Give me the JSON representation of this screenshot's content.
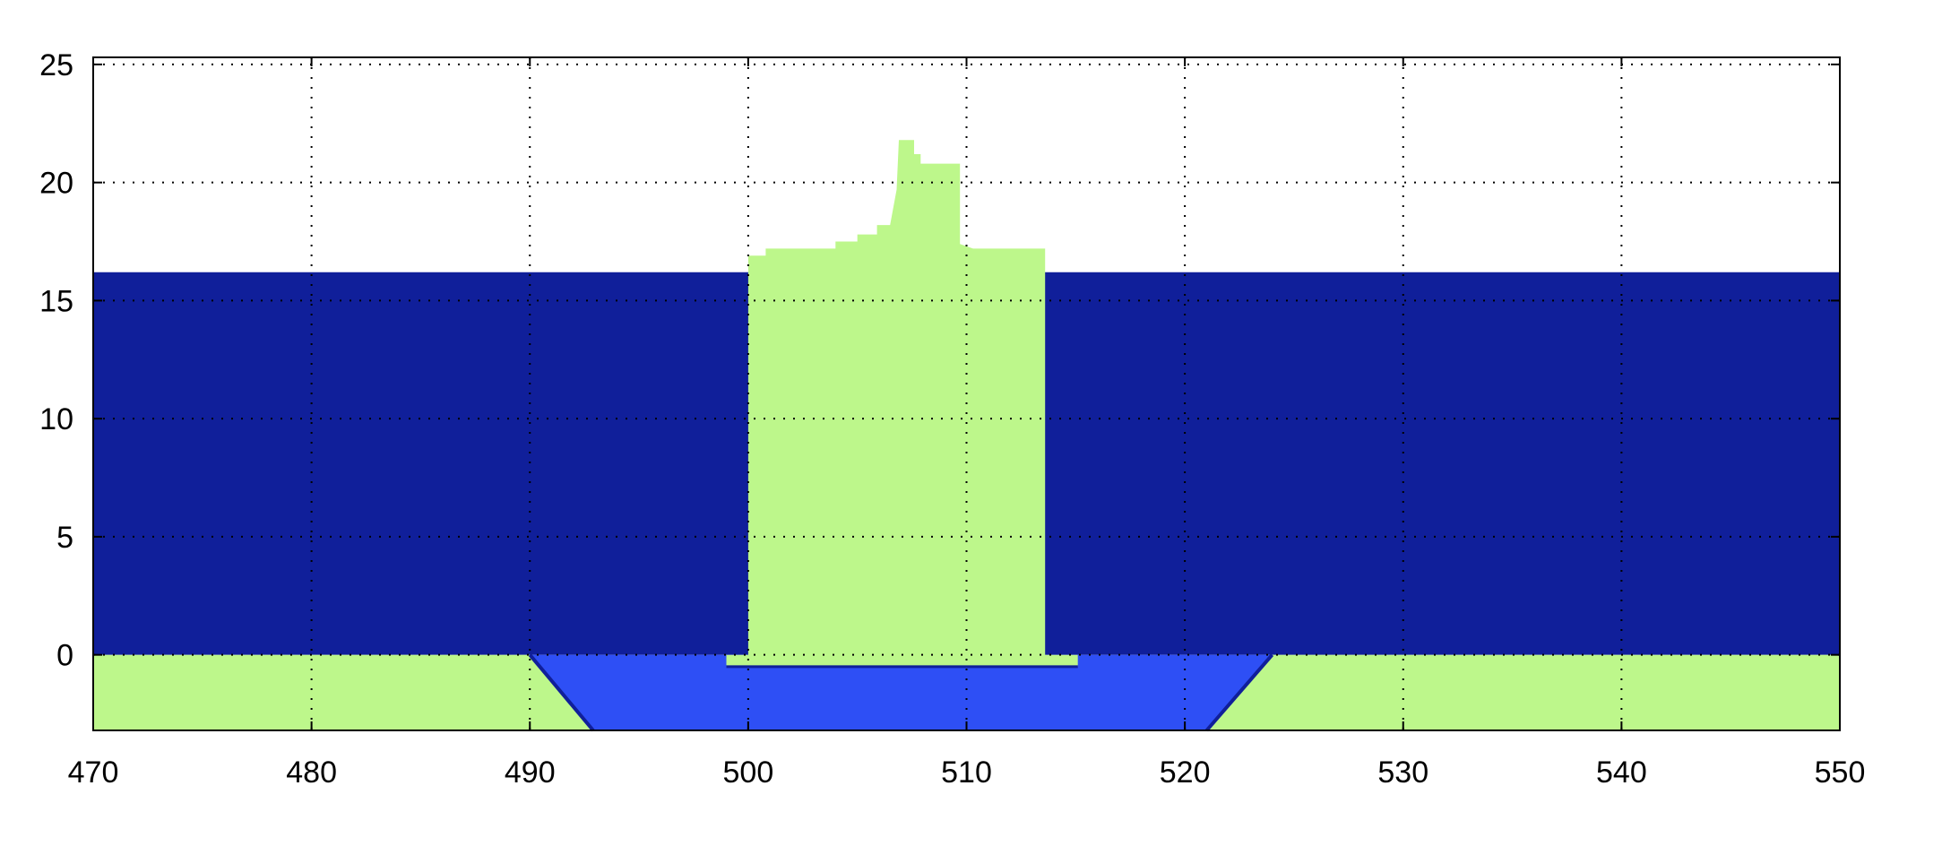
{
  "chart_data": {
    "type": "area",
    "title": "",
    "xlabel": "",
    "ylabel": "",
    "xlim": [
      470,
      550
    ],
    "ylim": [
      -3.2,
      25.3
    ],
    "grid": true,
    "x_ticks": [
      470,
      480,
      490,
      500,
      510,
      520,
      530,
      540,
      550
    ],
    "y_ticks": [
      0,
      5,
      10,
      15,
      20,
      25
    ],
    "x_tick_labels": [
      "470",
      "480",
      "490",
      "500",
      "510",
      "520",
      "530",
      "540",
      "550"
    ],
    "y_tick_labels": [
      "0",
      "5",
      "10",
      "15",
      "20",
      "25"
    ],
    "colors": {
      "water": "#101f9a",
      "trench_fill": "#2e4ff5",
      "soil": "#bdf78b",
      "background": "#ffffff",
      "grid": "#000000"
    },
    "regions": [
      {
        "kind": "water",
        "color": "#101f9a",
        "points": [
          [
            470,
            0
          ],
          [
            470,
            16.2
          ],
          [
            550,
            16.2
          ],
          [
            550,
            0
          ]
        ]
      },
      {
        "kind": "trench_fill",
        "color": "#2e4ff5",
        "points": [
          [
            490,
            0
          ],
          [
            492.9,
            -3.2
          ],
          [
            521,
            -3.2
          ],
          [
            524,
            0
          ]
        ]
      },
      {
        "kind": "seabed_left",
        "color": "#bdf78b",
        "points": [
          [
            470,
            -3.2
          ],
          [
            470,
            0
          ],
          [
            490,
            0
          ],
          [
            492.9,
            -3.2
          ]
        ]
      },
      {
        "kind": "seabed_right",
        "color": "#bdf78b",
        "points": [
          [
            521,
            -3.2
          ],
          [
            524,
            0
          ],
          [
            550,
            0
          ],
          [
            550,
            -3.2
          ]
        ]
      },
      {
        "kind": "structure",
        "color": "#bdf78b",
        "points": [
          [
            499,
            -0.5
          ],
          [
            499,
            0
          ],
          [
            500,
            0
          ],
          [
            500,
            16.9
          ],
          [
            500.8,
            16.9
          ],
          [
            500.8,
            17.2
          ],
          [
            504,
            17.2
          ],
          [
            504,
            17.5
          ],
          [
            505,
            17.5
          ],
          [
            505,
            17.8
          ],
          [
            505.9,
            17.8
          ],
          [
            505.9,
            18.2
          ],
          [
            506.5,
            18.2
          ],
          [
            506.8,
            19.7
          ],
          [
            506.9,
            21.8
          ],
          [
            507.6,
            21.8
          ],
          [
            507.6,
            21.2
          ],
          [
            507.9,
            21.2
          ],
          [
            507.9,
            20.8
          ],
          [
            509.7,
            20.8
          ],
          [
            509.7,
            17.4
          ],
          [
            510.3,
            17.2
          ],
          [
            513.6,
            17.2
          ],
          [
            513.6,
            0
          ],
          [
            515.1,
            0
          ],
          [
            515.1,
            -0.5
          ]
        ]
      }
    ]
  }
}
